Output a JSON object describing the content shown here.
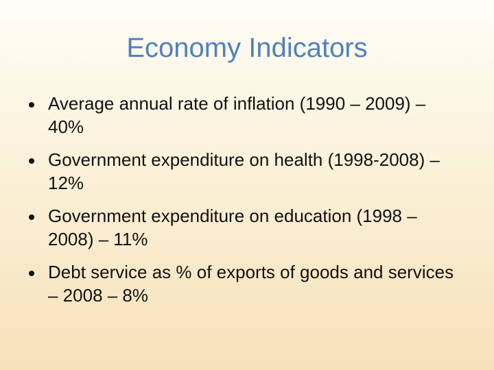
{
  "slide": {
    "title": "Economy Indicators",
    "bullets": [
      "Average annual rate of inflation (1990 – 2009) – 40%",
      "Government expenditure on health (1998-2008) – 12%",
      "Government expenditure on education (1998 – 2008) – 11%",
      "Debt service as % of exports of goods and services – 2008 – 8%"
    ]
  },
  "colors": {
    "title": "#4f81bd",
    "text": "#111111",
    "background_top": "#fefdf6",
    "background_bottom": "#f6e1b9"
  }
}
